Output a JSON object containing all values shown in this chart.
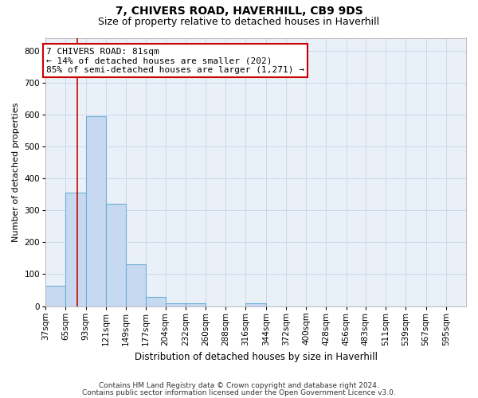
{
  "title1": "7, CHIVERS ROAD, HAVERHILL, CB9 9DS",
  "title2": "Size of property relative to detached houses in Haverhill",
  "xlabel": "Distribution of detached houses by size in Haverhill",
  "ylabel": "Number of detached properties",
  "bin_labels": [
    "37sqm",
    "65sqm",
    "93sqm",
    "121sqm",
    "149sqm",
    "177sqm",
    "204sqm",
    "232sqm",
    "260sqm",
    "288sqm",
    "316sqm",
    "344sqm",
    "372sqm",
    "400sqm",
    "428sqm",
    "456sqm",
    "483sqm",
    "511sqm",
    "539sqm",
    "567sqm",
    "595sqm"
  ],
  "bin_edges": [
    37,
    65,
    93,
    121,
    149,
    177,
    204,
    232,
    260,
    288,
    316,
    344,
    372,
    400,
    428,
    456,
    483,
    511,
    539,
    567,
    595
  ],
  "bin_values": [
    65,
    355,
    595,
    320,
    130,
    30,
    8,
    8,
    0,
    0,
    8,
    0,
    0,
    0,
    0,
    0,
    0,
    0,
    0,
    0,
    0
  ],
  "bar_color": "#c6d9f0",
  "bar_edgecolor": "#6baed6",
  "grid_color": "#c8d4e8",
  "bg_color": "#eaf0f8",
  "property_line_x": 81,
  "property_line_color": "#cc0000",
  "annotation_line1": "7 CHIVERS ROAD: 81sqm",
  "annotation_line2": "← 14% of detached houses are smaller (202)",
  "annotation_line3": "85% of semi-detached houses are larger (1,271) →",
  "annotation_box_color": "#cc0000",
  "annotation_bg": "white",
  "footnote1": "Contains HM Land Registry data © Crown copyright and database right 2024.",
  "footnote2": "Contains public sector information licensed under the Open Government Licence v3.0.",
  "ylim": [
    0,
    840
  ],
  "yticks": [
    0,
    100,
    200,
    300,
    400,
    500,
    600,
    700,
    800
  ],
  "title1_fontsize": 10,
  "title2_fontsize": 9,
  "xlabel_fontsize": 8.5,
  "ylabel_fontsize": 8,
  "tick_fontsize": 7.5,
  "annotation_fontsize": 8,
  "footnote_fontsize": 6.5
}
